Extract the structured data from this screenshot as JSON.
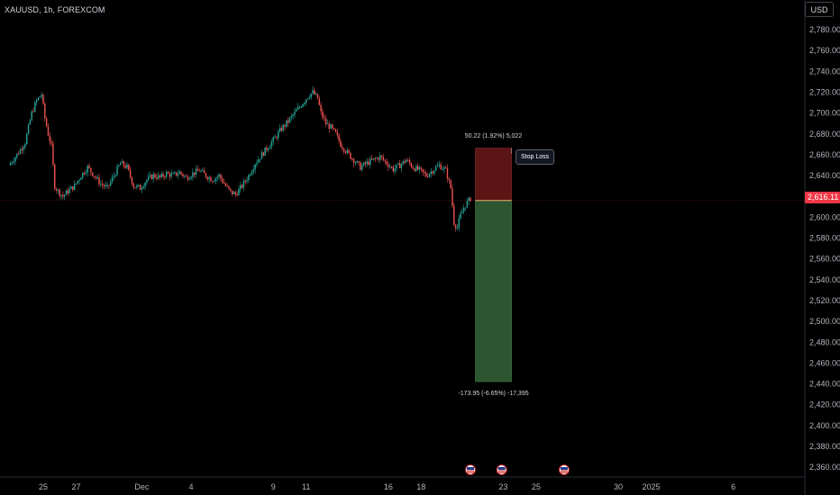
{
  "header": {
    "symbol_title": "XAUUSD, 1h, FOREXCOM",
    "currency": "USD"
  },
  "colors": {
    "background": "#000000",
    "up_candle": "#26a69a",
    "down_candle": "#ef5350",
    "loss_zone": "#5b1515",
    "profit_zone": "#2d5531",
    "entry_line": "#f0c070",
    "current_price": "#f23645"
  },
  "chart_data": {
    "type": "candlestick",
    "symbol": "XAUUSD",
    "interval": "1h",
    "ylim": [
      2340,
      2800
    ],
    "y_ticks": [
      "2,780.00",
      "2,760.00",
      "2,740.00",
      "2,720.00",
      "2,700.00",
      "2,680.00",
      "2,660.00",
      "2,640.00",
      "2,620.00",
      "2,600.00",
      "2,580.00",
      "2,560.00",
      "2,540.00",
      "2,520.00",
      "2,500.00",
      "2,480.00",
      "2,460.00",
      "2,440.00",
      "2,420.00",
      "2,400.00",
      "2,380.00",
      "2,360.00"
    ],
    "x_ticks": [
      {
        "label": "25",
        "day": 0
      },
      {
        "label": "27",
        "day": 2
      },
      {
        "label": "Dec",
        "day": 6
      },
      {
        "label": "4",
        "day": 9
      },
      {
        "label": "9",
        "day": 14
      },
      {
        "label": "11",
        "day": 16
      },
      {
        "label": "16",
        "day": 21
      },
      {
        "label": "18",
        "day": 23
      },
      {
        "label": "23",
        "day": 28
      },
      {
        "label": "25",
        "day": 30
      },
      {
        "label": "30",
        "day": 35
      },
      {
        "label": "2025",
        "day": 37
      },
      {
        "label": "6",
        "day": 42
      }
    ],
    "price_path": [
      {
        "day": -2.0,
        "price": 2650
      },
      {
        "day": -1.5,
        "price": 2660
      },
      {
        "day": -1.0,
        "price": 2672
      },
      {
        "day": -0.6,
        "price": 2700
      },
      {
        "day": -0.3,
        "price": 2712
      },
      {
        "day": 0.0,
        "price": 2718
      },
      {
        "day": 0.2,
        "price": 2695
      },
      {
        "day": 0.4,
        "price": 2680
      },
      {
        "day": 0.6,
        "price": 2668
      },
      {
        "day": 0.8,
        "price": 2630
      },
      {
        "day": 1.0,
        "price": 2625
      },
      {
        "day": 1.3,
        "price": 2620
      },
      {
        "day": 1.6,
        "price": 2625
      },
      {
        "day": 2.0,
        "price": 2630
      },
      {
        "day": 2.4,
        "price": 2640
      },
      {
        "day": 2.8,
        "price": 2648
      },
      {
        "day": 3.2,
        "price": 2640
      },
      {
        "day": 3.6,
        "price": 2632
      },
      {
        "day": 4.0,
        "price": 2628
      },
      {
        "day": 4.4,
        "price": 2640
      },
      {
        "day": 4.8,
        "price": 2652
      },
      {
        "day": 5.2,
        "price": 2648
      },
      {
        "day": 5.6,
        "price": 2630
      },
      {
        "day": 6.0,
        "price": 2628
      },
      {
        "day": 6.4,
        "price": 2636
      },
      {
        "day": 6.8,
        "price": 2640
      },
      {
        "day": 7.2,
        "price": 2638
      },
      {
        "day": 7.6,
        "price": 2642
      },
      {
        "day": 8.0,
        "price": 2640
      },
      {
        "day": 8.4,
        "price": 2643
      },
      {
        "day": 8.8,
        "price": 2638
      },
      {
        "day": 9.2,
        "price": 2642
      },
      {
        "day": 9.6,
        "price": 2645
      },
      {
        "day": 10.0,
        "price": 2640
      },
      {
        "day": 10.4,
        "price": 2636
      },
      {
        "day": 10.8,
        "price": 2640
      },
      {
        "day": 11.2,
        "price": 2630
      },
      {
        "day": 11.5,
        "price": 2624
      },
      {
        "day": 11.8,
        "price": 2622
      },
      {
        "day": 12.2,
        "price": 2630
      },
      {
        "day": 12.6,
        "price": 2640
      },
      {
        "day": 13.0,
        "price": 2652
      },
      {
        "day": 13.4,
        "price": 2660
      },
      {
        "day": 13.8,
        "price": 2668
      },
      {
        "day": 14.2,
        "price": 2676
      },
      {
        "day": 14.6,
        "price": 2685
      },
      {
        "day": 15.0,
        "price": 2692
      },
      {
        "day": 15.4,
        "price": 2700
      },
      {
        "day": 15.8,
        "price": 2708
      },
      {
        "day": 16.2,
        "price": 2716
      },
      {
        "day": 16.5,
        "price": 2720
      },
      {
        "day": 16.8,
        "price": 2714
      },
      {
        "day": 17.0,
        "price": 2700
      },
      {
        "day": 17.3,
        "price": 2690
      },
      {
        "day": 17.6,
        "price": 2686
      },
      {
        "day": 17.9,
        "price": 2680
      },
      {
        "day": 18.2,
        "price": 2670
      },
      {
        "day": 18.6,
        "price": 2662
      },
      {
        "day": 19.0,
        "price": 2655
      },
      {
        "day": 19.4,
        "price": 2648
      },
      {
        "day": 19.8,
        "price": 2652
      },
      {
        "day": 20.2,
        "price": 2655
      },
      {
        "day": 20.6,
        "price": 2658
      },
      {
        "day": 21.0,
        "price": 2652
      },
      {
        "day": 21.4,
        "price": 2646
      },
      {
        "day": 21.8,
        "price": 2650
      },
      {
        "day": 22.2,
        "price": 2655
      },
      {
        "day": 22.6,
        "price": 2648
      },
      {
        "day": 23.0,
        "price": 2645
      },
      {
        "day": 23.4,
        "price": 2640
      },
      {
        "day": 23.8,
        "price": 2645
      },
      {
        "day": 24.2,
        "price": 2650
      },
      {
        "day": 24.6,
        "price": 2645
      },
      {
        "day": 24.9,
        "price": 2628
      },
      {
        "day": 25.1,
        "price": 2595
      },
      {
        "day": 25.3,
        "price": 2590
      },
      {
        "day": 25.5,
        "price": 2602
      },
      {
        "day": 25.8,
        "price": 2612
      },
      {
        "day": 26.1,
        "price": 2618
      }
    ],
    "current_price": {
      "label": "2,616.11",
      "value": 2616.11
    },
    "position_tool": {
      "type": "short",
      "entry": 2616.11,
      "stop": 2666.33,
      "target": 2442.16,
      "start_day": 26.3,
      "end_day": 28.5,
      "stop_label": "Stop Loss",
      "top_text": "50.22 (1.92%) 5,022",
      "bottom_text": "-173.95 (-6.65%) -17,395"
    },
    "event_markers": [
      {
        "day": 26.0
      },
      {
        "day": 27.9
      },
      {
        "day": 31.7
      }
    ]
  }
}
